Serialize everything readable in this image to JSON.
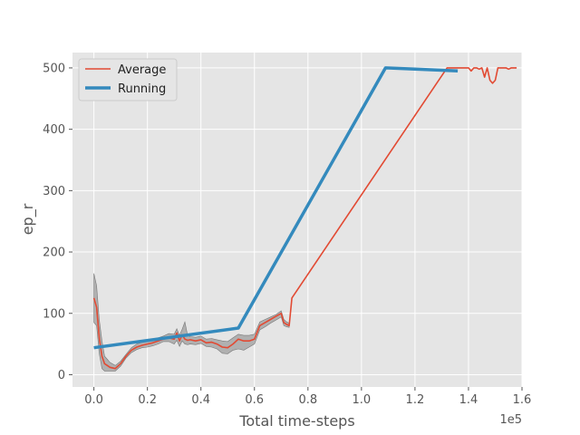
{
  "chart_data": {
    "type": "line",
    "xlabel": "Total time-steps",
    "ylabel": "ep_r",
    "x_offset_label": "1e5",
    "xlim": [
      -0.08,
      1.6
    ],
    "ylim": [
      -20,
      525
    ],
    "x_ticks": [
      0.0,
      0.2,
      0.4,
      0.6,
      0.8,
      1.0,
      1.2,
      1.4,
      1.6
    ],
    "x_tick_labels": [
      "0.0",
      "0.2",
      "0.4",
      "0.6",
      "0.8",
      "1.0",
      "1.2",
      "1.4",
      "1.6"
    ],
    "y_ticks": [
      0,
      100,
      200,
      300,
      400,
      500
    ],
    "y_tick_labels": [
      "0",
      "100",
      "200",
      "300",
      "400",
      "500"
    ],
    "grid": true,
    "legend_position": "top-left",
    "series": [
      {
        "name": "Average",
        "color": "#E24A33",
        "x": [
          0.0,
          0.01,
          0.02,
          0.03,
          0.04,
          0.05,
          0.06,
          0.08,
          0.1,
          0.12,
          0.14,
          0.16,
          0.18,
          0.2,
          0.22,
          0.24,
          0.26,
          0.28,
          0.3,
          0.31,
          0.32,
          0.33,
          0.34,
          0.35,
          0.36,
          0.38,
          0.4,
          0.42,
          0.44,
          0.46,
          0.48,
          0.5,
          0.52,
          0.54,
          0.56,
          0.58,
          0.6,
          0.62,
          0.64,
          0.66,
          0.68,
          0.7,
          0.71,
          0.72,
          0.73,
          0.74,
          1.32,
          1.35,
          1.37,
          1.4,
          1.41,
          1.42,
          1.43,
          1.44,
          1.45,
          1.46,
          1.47,
          1.48,
          1.49,
          1.5,
          1.51,
          1.52,
          1.54,
          1.55,
          1.56,
          1.57,
          1.58
        ],
        "values": [
          125,
          110,
          60,
          30,
          18,
          15,
          12,
          10,
          18,
          30,
          40,
          45,
          48,
          50,
          52,
          55,
          58,
          60,
          58,
          68,
          55,
          65,
          58,
          56,
          57,
          55,
          57,
          52,
          53,
          50,
          45,
          44,
          50,
          58,
          55,
          55,
          58,
          80,
          85,
          90,
          95,
          100,
          85,
          82,
          80,
          125,
          500,
          500,
          500,
          500,
          495,
          500,
          500,
          498,
          500,
          485,
          500,
          480,
          475,
          480,
          500,
          500,
          500,
          498,
          500,
          500,
          500
        ]
      },
      {
        "name": "Running",
        "color": "#348ABD",
        "x": [
          0.0,
          0.54,
          1.09,
          1.36
        ],
        "values": [
          44,
          76,
          500,
          495
        ]
      }
    ],
    "band": {
      "color": "#8c8c8c",
      "x": [
        0.0,
        0.01,
        0.02,
        0.03,
        0.04,
        0.05,
        0.06,
        0.08,
        0.1,
        0.12,
        0.14,
        0.16,
        0.18,
        0.2,
        0.22,
        0.24,
        0.26,
        0.28,
        0.3,
        0.31,
        0.32,
        0.33,
        0.34,
        0.35,
        0.36,
        0.38,
        0.4,
        0.42,
        0.44,
        0.46,
        0.48,
        0.5,
        0.52,
        0.54,
        0.56,
        0.58,
        0.6,
        0.62,
        0.64,
        0.66,
        0.68,
        0.7,
        0.71,
        0.72,
        0.73
      ],
      "upper": [
        165,
        145,
        90,
        55,
        30,
        25,
        20,
        15,
        22,
        33,
        44,
        50,
        53,
        56,
        58,
        60,
        63,
        67,
        66,
        75,
        64,
        74,
        86,
        64,
        62,
        61,
        63,
        58,
        59,
        57,
        55,
        54,
        60,
        66,
        64,
        64,
        66,
        86,
        90,
        94,
        98,
        104,
        90,
        86,
        84
      ],
      "lower": [
        85,
        80,
        35,
        10,
        6,
        6,
        6,
        6,
        14,
        27,
        36,
        41,
        44,
        45,
        47,
        50,
        54,
        54,
        50,
        56,
        46,
        55,
        50,
        49,
        50,
        49,
        51,
        46,
        45,
        42,
        35,
        34,
        40,
        42,
        40,
        45,
        50,
        73,
        78,
        84,
        89,
        94,
        80,
        78,
        77
      ]
    }
  }
}
